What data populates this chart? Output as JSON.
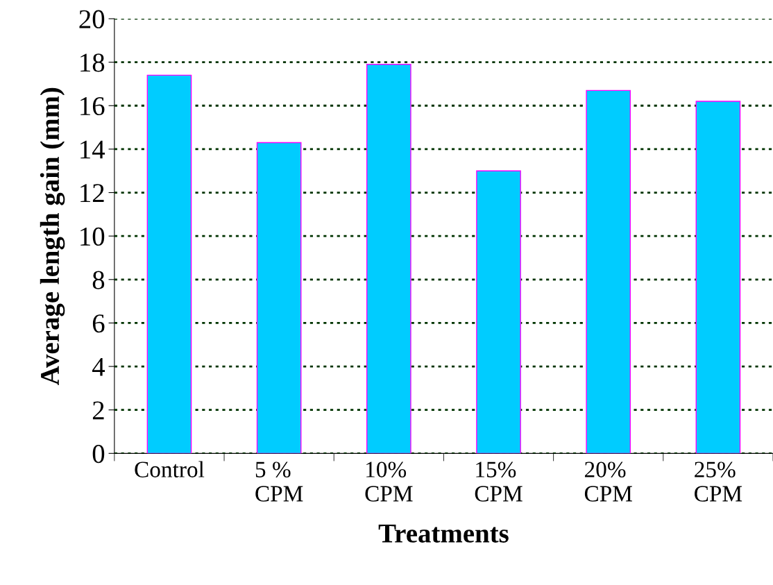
{
  "chart_data": {
    "type": "bar",
    "xlabel": "Treatments",
    "ylabel": "Average length gain (mm)",
    "categories": [
      "Control",
      "5 %\nCPM",
      "10%\nCPM",
      "15%\nCPM",
      "20%\nCPM",
      "25%\nCPM"
    ],
    "values": [
      17.4,
      14.3,
      17.9,
      13.0,
      16.7,
      16.2
    ],
    "color": "#00ccff",
    "ylim": [
      0,
      20
    ],
    "yticks": [
      0,
      2,
      4,
      6,
      8,
      10,
      12,
      14,
      16,
      18,
      20
    ],
    "grid": "y"
  }
}
